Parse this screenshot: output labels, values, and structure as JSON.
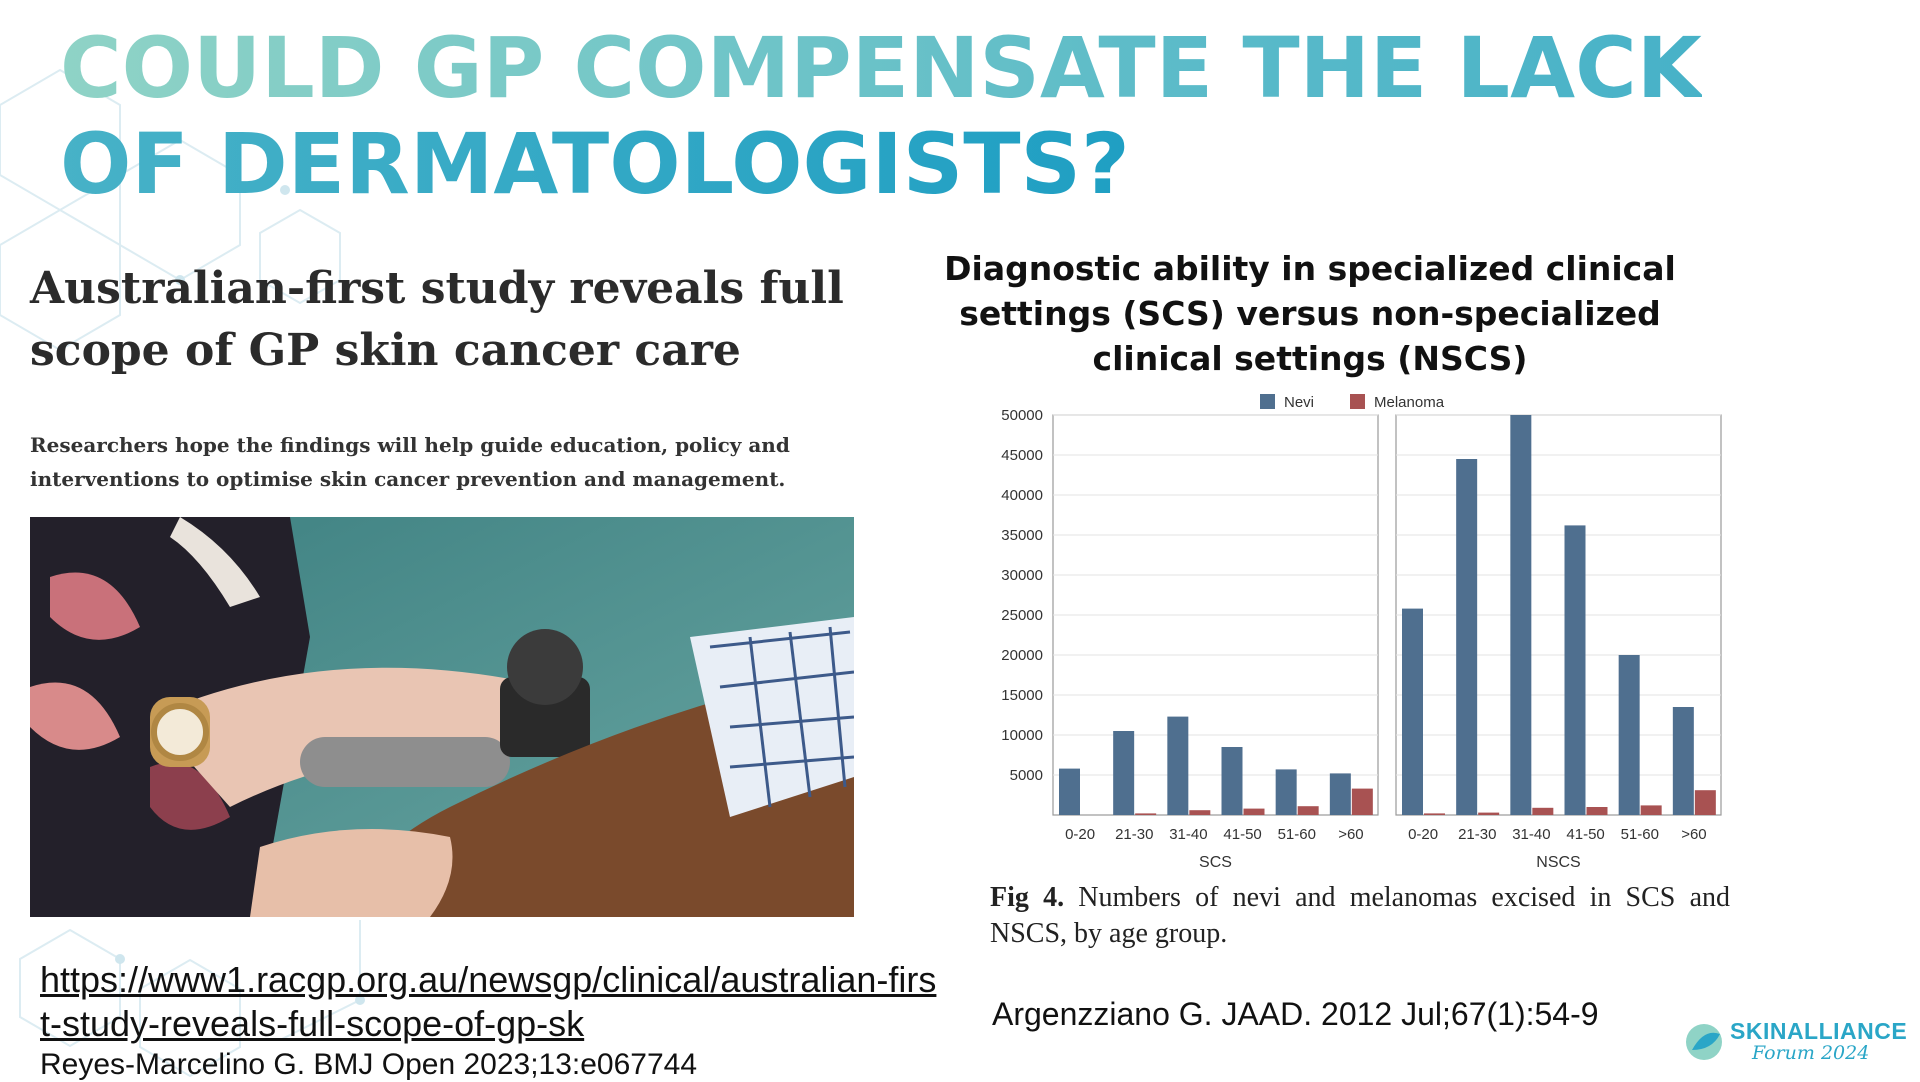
{
  "slide": {
    "title": "COULD GP COMPENSATE THE LACK OF DERMATOLOGISTS?"
  },
  "left": {
    "headline": "Australian-first study reveals full scope of GP skin cancer care",
    "subtext": "Researchers hope the findings will help guide education, policy and interventions to optimise skin cancer prevention and management.",
    "url": "https://www1.racgp.org.au/newsgp/clinical/australian-first-study-reveals-full-scope-of-gp-sk",
    "reference": "Reyes-Marcelino G. BMJ Open 2023;13:e067744"
  },
  "right": {
    "chart_title": "Diagnostic ability in specialized clinical settings (SCS) versus non-specialized clinical settings (NSCS)",
    "caption_label": "Fig 4.",
    "caption_text": "Numbers of nevi and melanomas excised in SCS and NSCS, by age group.",
    "reference": "Argenzziano G. JAAD. 2012 Jul;67(1):54-9"
  },
  "chart_data": {
    "type": "bar",
    "title": "",
    "ylim": [
      0,
      50000
    ],
    "yticks": [
      5000,
      10000,
      15000,
      20000,
      25000,
      30000,
      35000,
      40000,
      45000,
      50000
    ],
    "legend_position": "top-center",
    "grid": true,
    "categories": [
      "0-20",
      "21-30",
      "31-40",
      "41-50",
      "51-60",
      ">60"
    ],
    "panels": [
      {
        "name": "SCS",
        "series": [
          {
            "name": "Nevi",
            "color": "#4f6f8f",
            "values": [
              5800,
              10500,
              12300,
              8500,
              5700,
              5200
            ]
          },
          {
            "name": "Melanoma",
            "color": "#a85252",
            "values": [
              0,
              200,
              600,
              800,
              1100,
              3300
            ]
          }
        ]
      },
      {
        "name": "NSCS",
        "series": [
          {
            "name": "Nevi",
            "color": "#4f6f8f",
            "values": [
              25800,
              44500,
              50000,
              36200,
              20000,
              13500
            ]
          },
          {
            "name": "Melanoma",
            "color": "#a85252",
            "values": [
              200,
              300,
              900,
              1000,
              1200,
              3100
            ]
          }
        ]
      }
    ]
  },
  "logo": {
    "name": "SKINALLIANCE",
    "sub": "Forum 2024",
    "color": "#2aa6c7"
  }
}
